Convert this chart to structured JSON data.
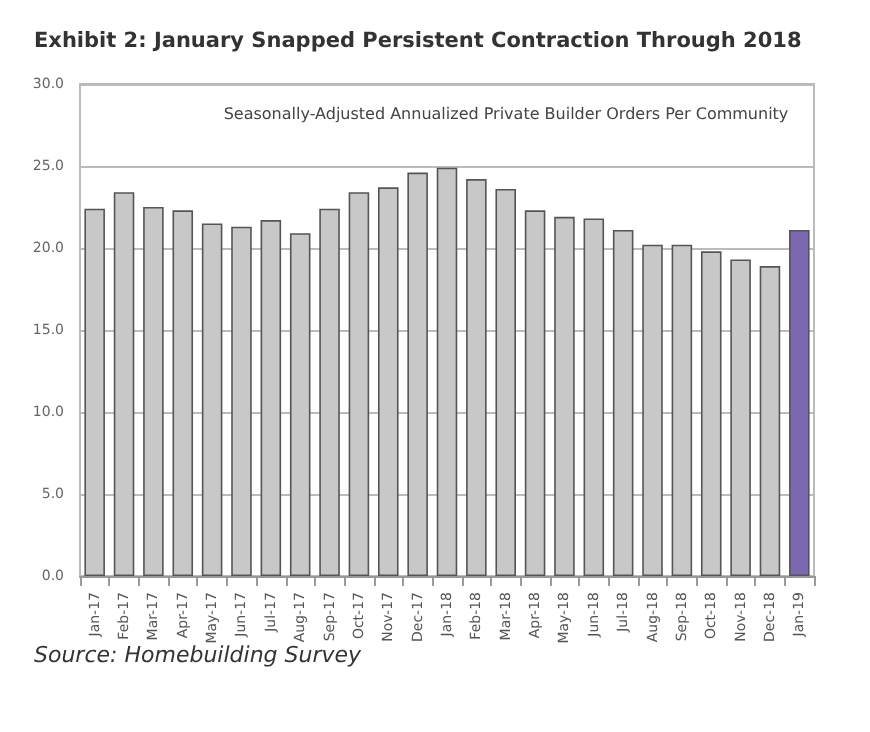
{
  "chart_data": {
    "type": "bar",
    "title": "Exhibit 2: January Snapped Persistent Contraction Through 2018",
    "subtitle": "Seasonally-Adjusted Annualized Private Builder Orders Per Community",
    "annotations": [
      "Source: Homebuilding Survey"
    ],
    "categories": [
      "Jan-17",
      "Feb-17",
      "Mar-17",
      "Apr-17",
      "May-17",
      "Jun-17",
      "Jul-17",
      "Aug-17",
      "Sep-17",
      "Oct-17",
      "Nov-17",
      "Dec-17",
      "Jan-18",
      "Feb-18",
      "Mar-18",
      "Apr-18",
      "May-18",
      "Jun-18",
      "Jul-18",
      "Aug-18",
      "Sep-18",
      "Oct-18",
      "Nov-18",
      "Dec-18",
      "Jan-19"
    ],
    "values": [
      22.4,
      23.4,
      22.5,
      22.3,
      21.5,
      21.3,
      21.7,
      20.9,
      22.4,
      23.4,
      23.7,
      24.6,
      24.9,
      24.2,
      23.6,
      22.3,
      21.9,
      21.8,
      21.1,
      20.2,
      20.2,
      19.8,
      19.3,
      18.9,
      21.1
    ],
    "colors": [
      "#c8c8c8",
      "#c8c8c8",
      "#c8c8c8",
      "#c8c8c8",
      "#c8c8c8",
      "#c8c8c8",
      "#c8c8c8",
      "#c8c8c8",
      "#c8c8c8",
      "#c8c8c8",
      "#c8c8c8",
      "#c8c8c8",
      "#c8c8c8",
      "#c8c8c8",
      "#c8c8c8",
      "#c8c8c8",
      "#c8c8c8",
      "#c8c8c8",
      "#c8c8c8",
      "#c8c8c8",
      "#c8c8c8",
      "#c8c8c8",
      "#c8c8c8",
      "#c8c8c8",
      "#7b68ae"
    ],
    "ylim": [
      0,
      30
    ],
    "yticks": [
      {
        "value": 0,
        "label": "0.0"
      },
      {
        "value": 5,
        "label": "5.0"
      },
      {
        "value": 10,
        "label": "10.0"
      },
      {
        "value": 15,
        "label": "15.0"
      },
      {
        "value": 20,
        "label": "20.0"
      },
      {
        "value": 25,
        "label": "25.0"
      },
      {
        "value": 30,
        "label": "30.0"
      }
    ],
    "grid": "y"
  }
}
